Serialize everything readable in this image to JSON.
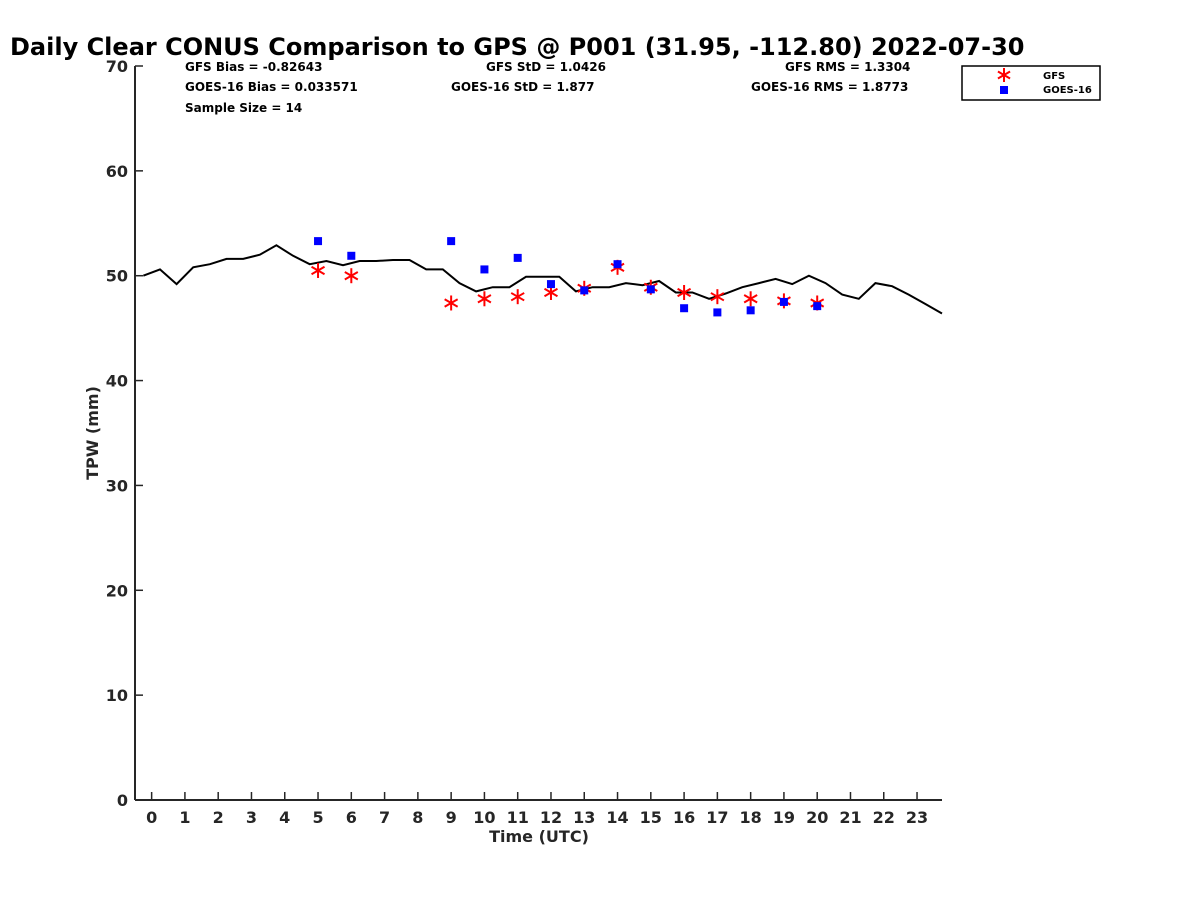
{
  "chart_data": {
    "type": "scatter",
    "title": "Daily Clear CONUS Comparison to GPS @ P001 (31.95, -112.80) 2022-07-30",
    "xlabel": "Time (UTC)",
    "ylabel": "TPW (mm)",
    "xlim": [
      -0.5,
      23.75
    ],
    "ylim": [
      0,
      70
    ],
    "xticks": [
      0,
      1,
      2,
      3,
      4,
      5,
      6,
      7,
      8,
      9,
      10,
      11,
      12,
      13,
      14,
      15,
      16,
      17,
      18,
      19,
      20,
      21,
      22,
      23
    ],
    "yticks": [
      0,
      10,
      20,
      30,
      40,
      50,
      60,
      70
    ],
    "grid": false,
    "legend_position": "top-right",
    "stats": {
      "gfs_bias": "GFS Bias = -0.82643",
      "goes_bias": "GOES-16 Bias = 0.033571",
      "sample_size": "Sample Size = 14",
      "gfs_std": "GFS StD = 1.0426",
      "goes_std": "GOES-16 StD = 1.877",
      "gfs_rms": "GFS RMS = 1.3304",
      "goes_rms": "GOES-16 RMS = 1.8773"
    },
    "series": [
      {
        "name": "GPS",
        "kind": "line",
        "color": "#000000",
        "x": [
          -0.25,
          0.25,
          0.75,
          1.25,
          1.75,
          2.25,
          2.75,
          3.25,
          3.75,
          4.25,
          4.75,
          5.25,
          5.75,
          6.25,
          6.75,
          7.25,
          7.75,
          8.25,
          8.75,
          9.25,
          9.75,
          10.25,
          10.75,
          11.25,
          11.75,
          12.25,
          12.75,
          13.25,
          13.75,
          14.25,
          14.75,
          15.25,
          15.75,
          16.25,
          16.75,
          17.25,
          17.75,
          18.25,
          18.75,
          19.25,
          19.75,
          20.25,
          20.75,
          21.25,
          21.75,
          22.25,
          22.75,
          23.25,
          23.75
        ],
        "y": [
          50.0,
          50.6,
          49.2,
          50.8,
          51.1,
          51.6,
          51.6,
          52.0,
          52.9,
          51.9,
          51.1,
          51.4,
          51.0,
          51.4,
          51.4,
          51.5,
          51.5,
          50.6,
          50.6,
          49.3,
          48.5,
          48.9,
          48.9,
          49.9,
          49.9,
          49.9,
          48.5,
          48.9,
          48.9,
          49.3,
          49.1,
          49.5,
          48.4,
          48.4,
          47.8,
          48.3,
          48.9,
          49.3,
          49.7,
          49.2,
          50.0,
          49.3,
          48.2,
          47.8,
          49.3,
          49.0,
          48.2,
          47.3,
          46.4
        ]
      },
      {
        "name": "GFS",
        "kind": "marker",
        "marker": "asterisk",
        "color": "#ff0000",
        "x": [
          5,
          6,
          9,
          10,
          11,
          12,
          13,
          14,
          15,
          16,
          17,
          18,
          19,
          20
        ],
        "y": [
          50.5,
          50.0,
          47.4,
          47.8,
          48.0,
          48.4,
          48.8,
          50.8,
          48.9,
          48.4,
          48.0,
          47.8,
          47.6,
          47.4
        ]
      },
      {
        "name": "GOES-16",
        "kind": "marker",
        "marker": "square",
        "color": "#0000ff",
        "x": [
          5,
          6,
          9,
          10,
          11,
          12,
          13,
          14,
          15,
          16,
          17,
          18,
          19,
          20
        ],
        "y": [
          53.3,
          51.9,
          53.3,
          50.6,
          51.7,
          49.2,
          48.6,
          51.1,
          48.7,
          46.9,
          46.5,
          46.7,
          47.5,
          47.1
        ]
      }
    ]
  }
}
